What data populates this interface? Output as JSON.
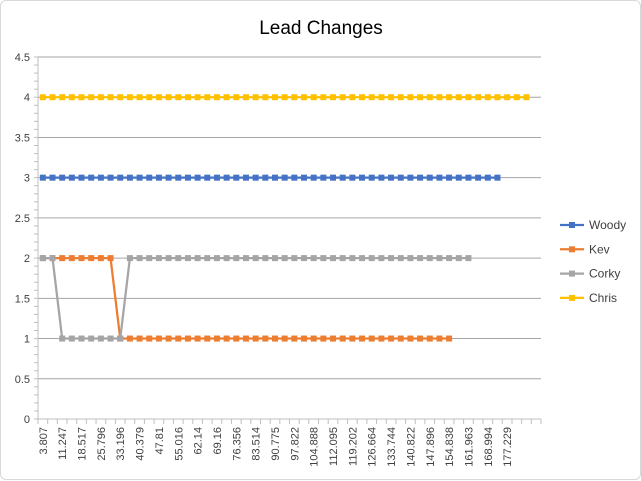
{
  "chart_data": {
    "type": "line",
    "title": "Lead Changes",
    "xlabel": "",
    "ylabel": "",
    "ylim": [
      0,
      4.5
    ],
    "y_ticks": [
      "0",
      "0.5",
      "1",
      "1.5",
      "2",
      "2.5",
      "3",
      "3.5",
      "4",
      "4.5"
    ],
    "x_tick_labels": [
      "3.807",
      "11.247",
      "18.517",
      "25.796",
      "33.196",
      "40.379",
      "47.81",
      "55.016",
      "62.14",
      "69.16",
      "76.356",
      "83.514",
      "90.775",
      "97.822",
      "104.888",
      "112.095",
      "119.202",
      "126.664",
      "133.744",
      "140.822",
      "147.896",
      "154.838",
      "161.963",
      "168.994",
      "177.229"
    ],
    "grid": "horizontal",
    "legend_position": "right",
    "series": [
      {
        "name": "Woody",
        "color": "#4472C4",
        "values": [
          3,
          3,
          3,
          3,
          3,
          3,
          3,
          3,
          3,
          3,
          3,
          3,
          3,
          3,
          3,
          3,
          3,
          3,
          3,
          3,
          3,
          3,
          3,
          3,
          3,
          3,
          3,
          3,
          3,
          3,
          3,
          3,
          3,
          3,
          3,
          3,
          3,
          3,
          3,
          3,
          3,
          3,
          3,
          3,
          3,
          3,
          3,
          3
        ]
      },
      {
        "name": "Kev",
        "color": "#ED7D31",
        "values": [
          2,
          2,
          2,
          2,
          2,
          2,
          2,
          2,
          1,
          1,
          1,
          1,
          1,
          1,
          1,
          1,
          1,
          1,
          1,
          1,
          1,
          1,
          1,
          1,
          1,
          1,
          1,
          1,
          1,
          1,
          1,
          1,
          1,
          1,
          1,
          1,
          1,
          1,
          1,
          1,
          1,
          1,
          1
        ]
      },
      {
        "name": "Corky",
        "color": "#A5A5A5",
        "values": [
          2,
          2,
          1,
          1,
          1,
          1,
          1,
          1,
          1,
          2,
          2,
          2,
          2,
          2,
          2,
          2,
          2,
          2,
          2,
          2,
          2,
          2,
          2,
          2,
          2,
          2,
          2,
          2,
          2,
          2,
          2,
          2,
          2,
          2,
          2,
          2,
          2,
          2,
          2,
          2,
          2,
          2,
          2,
          2,
          2
        ]
      },
      {
        "name": "Chris",
        "color": "#FFC000",
        "values": [
          4,
          4,
          4,
          4,
          4,
          4,
          4,
          4,
          4,
          4,
          4,
          4,
          4,
          4,
          4,
          4,
          4,
          4,
          4,
          4,
          4,
          4,
          4,
          4,
          4,
          4,
          4,
          4,
          4,
          4,
          4,
          4,
          4,
          4,
          4,
          4,
          4,
          4,
          4,
          4,
          4,
          4,
          4,
          4,
          4,
          4,
          4,
          4,
          4,
          4,
          4
        ]
      }
    ]
  }
}
